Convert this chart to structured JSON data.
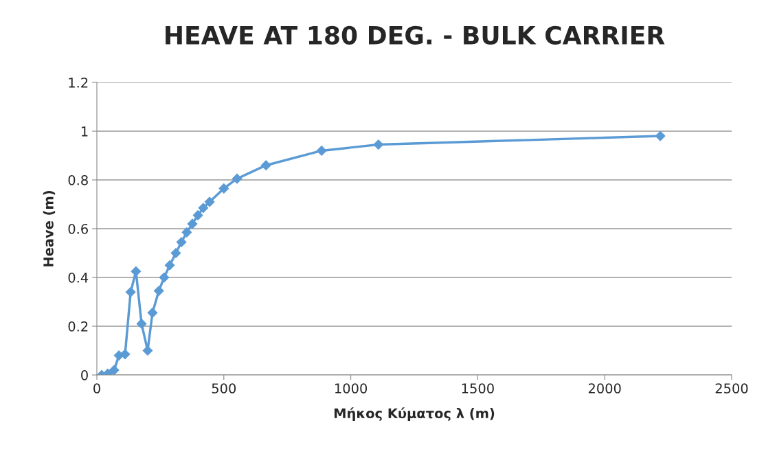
{
  "chart_data": {
    "type": "line",
    "title": "HEAVE AT 180 DEG. - BULK CARRIER",
    "xlabel": "Μήκος Κύματος λ (m)",
    "ylabel": "Heave (m)",
    "x": [
      19,
      43,
      68,
      87,
      111,
      133,
      154,
      176,
      200,
      219,
      244,
      265,
      287,
      311,
      333,
      354,
      376,
      398,
      419,
      444,
      500,
      552,
      666,
      885,
      1109,
      2219
    ],
    "series": [
      {
        "color": "#5b9bd5",
        "values": [
          0,
          0.005,
          0.02,
          0.08,
          0.085,
          0.34,
          0.425,
          0.21,
          0.1,
          0.255,
          0.345,
          0.4,
          0.45,
          0.5,
          0.545,
          0.585,
          0.62,
          0.655,
          0.685,
          0.71,
          0.765,
          0.805,
          0.86,
          0.92,
          0.945,
          0.98
        ]
      }
    ],
    "xlim": [
      0,
      2500
    ],
    "xticks": [
      0,
      500,
      1000,
      1500,
      2000,
      2500
    ],
    "ylim": [
      0,
      1.2
    ],
    "yticks": [
      0,
      0.2,
      0.4,
      0.6,
      0.8,
      1,
      1.2
    ],
    "grid": "y",
    "marker": "diamond",
    "line_style": "solid"
  }
}
